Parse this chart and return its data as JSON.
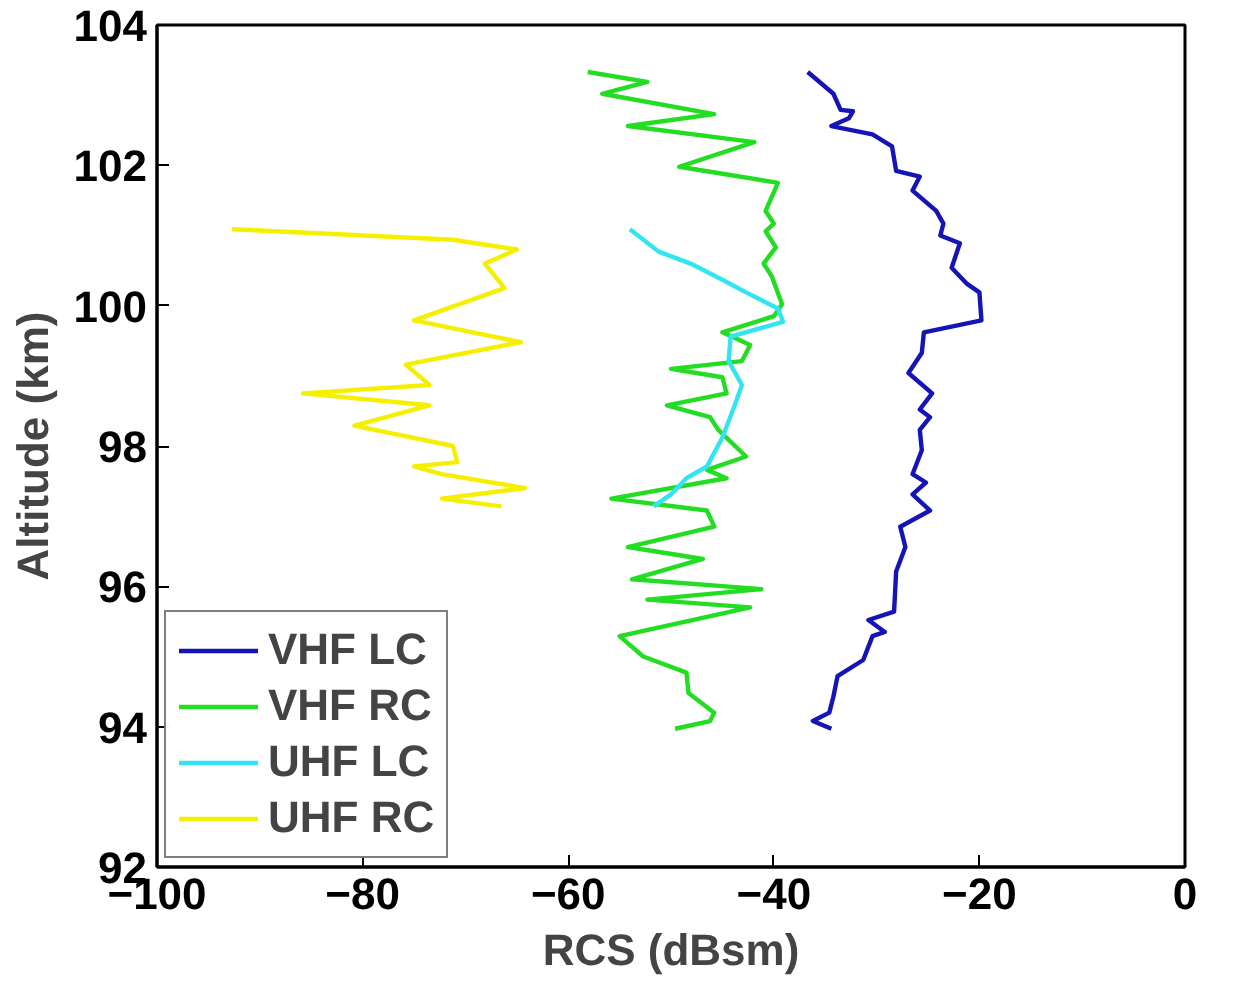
{
  "chart_data": {
    "type": "line",
    "xlabel": "RCS (dBsm)",
    "ylabel": "Altitude (km)",
    "xlim": [
      -100,
      0
    ],
    "xticks": [
      -100,
      -80,
      -60,
      -40,
      -20,
      0
    ],
    "ylim": [
      92,
      104
    ],
    "yticks": [
      92,
      94,
      96,
      98,
      100,
      102,
      104
    ],
    "grid": false,
    "legend": "bottom left",
    "line_style": "solid",
    "series": [
      {
        "name": "VHF LC",
        "color": "#1414b8",
        "x": [
          -36.7,
          -34.2,
          -33.5,
          -32.3,
          -32.7,
          -34.4,
          -30.4,
          -28.5,
          -28.1,
          -25.8,
          -26.5,
          -24.2,
          -23.5,
          -23.8,
          -21.9,
          -22.7,
          -21.2,
          -20.0,
          -19.8,
          -25.4,
          -25.6,
          -26.9,
          -24.6,
          -25.8,
          -24.8,
          -25.8,
          -25.6,
          -26.5,
          -25.2,
          -26.5,
          -24.8,
          -27.7,
          -27.2,
          -28.1,
          -28.3,
          -30.8,
          -29.2,
          -30.4,
          -31.3,
          -33.8,
          -34.2,
          -34.6,
          -36.2,
          -34.4
        ],
        "values": [
          103.33,
          103.02,
          102.79,
          102.77,
          102.67,
          102.56,
          102.44,
          102.27,
          101.92,
          101.84,
          101.64,
          101.35,
          101.17,
          101.0,
          100.89,
          100.54,
          100.31,
          100.19,
          99.79,
          99.62,
          99.33,
          99.04,
          98.75,
          98.52,
          98.41,
          98.23,
          97.94,
          97.6,
          97.48,
          97.31,
          97.08,
          96.85,
          96.56,
          96.21,
          95.64,
          95.52,
          95.35,
          95.29,
          94.95,
          94.72,
          94.43,
          94.2,
          94.08,
          93.97
        ]
      },
      {
        "name": "VHF RC",
        "color": "#22dd22",
        "x": [
          -58.1,
          -52.3,
          -56.7,
          -45.8,
          -54.2,
          -41.9,
          -49.2,
          -39.6,
          -40.8,
          -40.0,
          -40.8,
          -39.8,
          -41.0,
          -40.2,
          -39.2,
          -40.0,
          -45.0,
          -42.3,
          -43.1,
          -50.0,
          -45.0,
          -44.6,
          -50.4,
          -46.2,
          -45.4,
          -42.7,
          -46.5,
          -44.6,
          -55.8,
          -46.5,
          -45.8,
          -54.2,
          -46.9,
          -53.8,
          -41.2,
          -52.3,
          -42.3,
          -55.0,
          -52.7,
          -48.5,
          -48.3,
          -45.8,
          -46.2,
          -49.6
        ],
        "values": [
          103.33,
          103.19,
          103.02,
          102.73,
          102.56,
          102.33,
          101.98,
          101.75,
          101.35,
          101.17,
          101.06,
          100.83,
          100.6,
          100.42,
          100.02,
          99.85,
          99.62,
          99.44,
          99.21,
          99.1,
          98.98,
          98.75,
          98.58,
          98.41,
          98.23,
          97.85,
          97.66,
          97.54,
          97.25,
          97.08,
          96.85,
          96.56,
          96.39,
          96.1,
          95.96,
          95.81,
          95.7,
          95.29,
          95.0,
          94.77,
          94.48,
          94.2,
          94.08,
          93.97
        ]
      },
      {
        "name": "UHF LC",
        "color": "#33e5f0",
        "x": [
          -54.0,
          -51.2,
          -48.1,
          -45.0,
          -42.7,
          -39.6,
          -39.1,
          -44.2,
          -44.4,
          -43.1,
          -43.8,
          -45.0,
          -46.5,
          -48.5,
          -50.0,
          -51.7
        ],
        "values": [
          101.09,
          100.77,
          100.6,
          100.37,
          100.19,
          99.96,
          99.77,
          99.56,
          99.21,
          98.87,
          98.58,
          98.12,
          97.71,
          97.54,
          97.31,
          97.14
        ]
      },
      {
        "name": "UHF RC",
        "color": "#f5f000",
        "x": [
          -92.7,
          -71.2,
          -65.0,
          -68.1,
          -66.2,
          -75.0,
          -64.6,
          -75.8,
          -73.5,
          -85.8,
          -73.5,
          -80.8,
          -71.2,
          -70.8,
          -75.0,
          -72.3,
          -64.2,
          -72.3,
          -66.5
        ],
        "values": [
          101.09,
          100.94,
          100.8,
          100.6,
          100.25,
          99.79,
          99.48,
          99.16,
          98.87,
          98.75,
          98.58,
          98.29,
          98.0,
          97.77,
          97.71,
          97.6,
          97.4,
          97.25,
          97.14
        ]
      }
    ]
  }
}
